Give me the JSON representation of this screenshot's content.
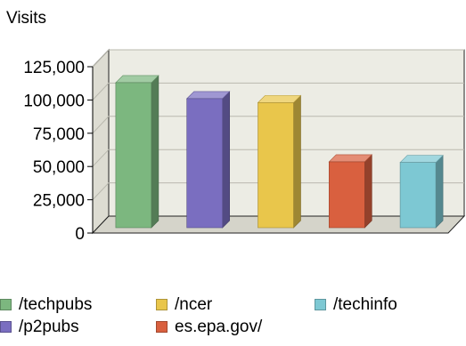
{
  "chart_data": {
    "type": "bar",
    "style": "3d",
    "ylabel": "Visits",
    "ylim": [
      0,
      125000
    ],
    "yticks": [
      0,
      25000,
      50000,
      75000,
      100000,
      125000
    ],
    "ytick_labels": [
      "0",
      "25,000",
      "50,000",
      "75,000",
      "100,000",
      "125,000"
    ],
    "grid": true,
    "legend_position": "bottom",
    "categories": [
      "/techpubs",
      "/p2pubs",
      "/ncer",
      "es.epa.gov/",
      "/techinfo"
    ],
    "values": [
      109000,
      97000,
      94000,
      49500,
      49000
    ],
    "colors": [
      "#7cb77f",
      "#7a6ec0",
      "#e9c64b",
      "#d9603f",
      "#7dc8d3"
    ]
  },
  "legend": {
    "items": [
      {
        "label": "/techpubs",
        "color": "#7cb77f"
      },
      {
        "label": "/p2pubs",
        "color": "#7a6ec0"
      },
      {
        "label": "/ncer",
        "color": "#e9c64b"
      },
      {
        "label": "es.epa.gov/",
        "color": "#d9603f"
      },
      {
        "label": "/techinfo",
        "color": "#7dc8d3"
      }
    ]
  }
}
